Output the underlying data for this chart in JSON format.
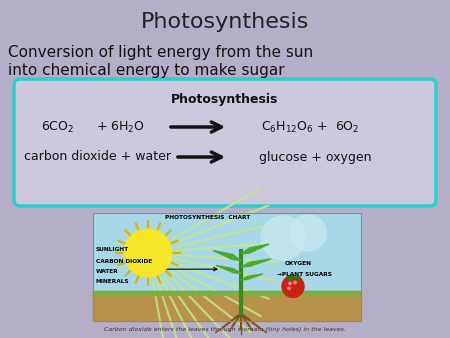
{
  "title": "Photosynthesis",
  "subtitle_line1": "Conversion of light energy from the sun",
  "subtitle_line2": "into chemical energy to make sugar",
  "bg_color": "#b5aec8",
  "title_color": "#222222",
  "subtitle_color": "#111111",
  "box_bg": "#cec8dc",
  "box_border": "#2bcfcf",
  "box_title": "Photosynthesis",
  "equation_line2_left": "carbon dioxide + water",
  "equation_line2_right": "glucose + oxygen",
  "caption": "Carbon dioxide enters the leaves through stomata (tiny holes) in the leaves.",
  "photo_chart_label": "PHOTOSYNTHESIS  CHART",
  "sunlight_label": "SUNLIGHT",
  "co2_label": "CARBON DIOXIDE",
  "water_label": "WATER",
  "minerals_label": "MINERALS",
  "oxygen_label": "OXYGEN",
  "plant_sugars_label": "PLANT SUGARS",
  "sky_color": "#a8d8e8",
  "sky_rays_color": "#c8e888",
  "ground_color": "#b8924a",
  "sun_color": "#f5e62a",
  "stem_color": "#3a8a20",
  "leaf_color": "#4aaa30",
  "berry_color": "#cc2010",
  "berry_top_color": "#2a7a10",
  "root_color": "#7a5020",
  "arrow_color": "#111111"
}
